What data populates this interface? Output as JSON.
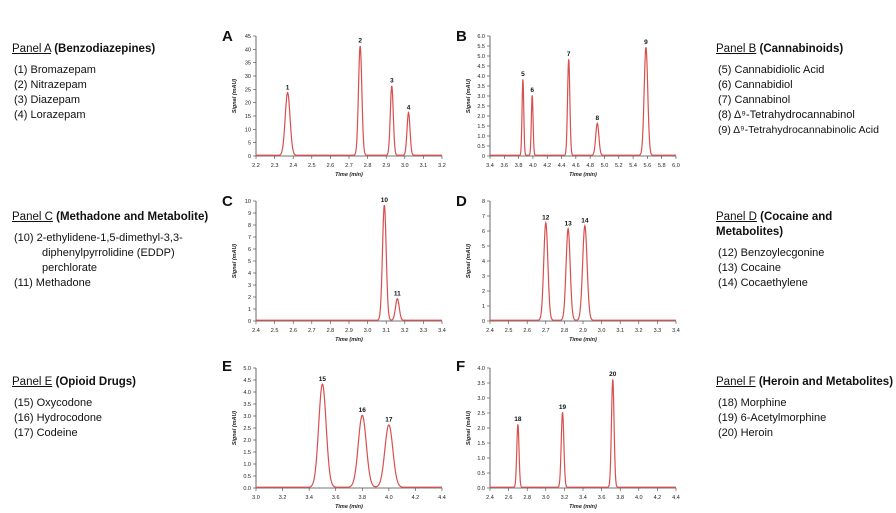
{
  "legends": {
    "A": {
      "name": "Panel A",
      "desc": "(Benzodiazepines)",
      "items": [
        "(1) Bromazepam",
        "(2) Nitrazepam",
        "(3) Diazepam",
        "(4) Lorazepam"
      ]
    },
    "B": {
      "name": "Panel B",
      "desc": "(Cannabinoids)",
      "items": [
        "(5) Cannabidiolic Acid",
        "(6) Cannabidiol",
        "(7) Cannabinol",
        "(8) Δ⁹-Tetrahydrocannabinol",
        "(9) Δ⁹-Tetrahydrocannabinolic  Acid"
      ]
    },
    "C": {
      "name": "Panel C",
      "desc": "(Methadone and Metabolite)",
      "items": [
        "(10) 2-ethylidene-1,5-dimethyl-3,3-diphenylpyrrolidine  (EDDP) perchlorate",
        "(11) Methadone"
      ]
    },
    "D": {
      "name": "Panel D",
      "desc": "(Cocaine and Metabolites)",
      "items": [
        "(12) Benzoylecgonine",
        "(13) Cocaine",
        "(14) Cocaethylene"
      ]
    },
    "E": {
      "name": "Panel E",
      "desc": "(Opioid Drugs)",
      "items": [
        "(15) Oxycodone",
        "(16) Hydrocodone",
        "(17) Codeine"
      ]
    },
    "F": {
      "name": "Panel F",
      "desc": "(Heroin and Metabolites)",
      "items": [
        "(18) Morphine",
        "(19) 6-Acetylmorphine",
        "(20) Heroin"
      ]
    }
  },
  "line_color": "#d94f4f",
  "chart_data": [
    {
      "id": "A",
      "type": "line",
      "xlabel": "Time (min)",
      "ylabel": "Signal (mAU)",
      "xlim": [
        2.2,
        3.2
      ],
      "ylim": [
        0,
        45
      ],
      "xticks": [
        "2.2",
        "2.3",
        "2.4",
        "2.5",
        "2.6",
        "2.7",
        "2.8",
        "2.9",
        "3.0",
        "3.1",
        "3.2"
      ],
      "yticks": [
        "0",
        "5",
        "10",
        "15",
        "20",
        "25",
        "30",
        "35",
        "40",
        "45"
      ],
      "peaks": [
        {
          "label": "1",
          "x": 2.37,
          "height": 23.5,
          "width": 0.013
        },
        {
          "label": "2",
          "x": 2.76,
          "height": 41,
          "width": 0.009
        },
        {
          "label": "3",
          "x": 2.93,
          "height": 26,
          "width": 0.008
        },
        {
          "label": "4",
          "x": 3.02,
          "height": 16,
          "width": 0.008
        }
      ]
    },
    {
      "id": "B",
      "type": "line",
      "xlabel": "Time (min)",
      "ylabel": "Signal (mAU)",
      "xlim": [
        3.4,
        6.0
      ],
      "ylim": [
        0,
        6.0
      ],
      "xticks": [
        "3.4",
        "3.6",
        "3.8",
        "4.0",
        "4.2",
        "4.4",
        "4.6",
        "4.8",
        "5.0",
        "5.2",
        "5.4",
        "5.6",
        "5.8",
        "6.0"
      ],
      "yticks": [
        "0",
        "0.5",
        "1.0",
        "1.5",
        "2.0",
        "2.5",
        "3.0",
        "3.5",
        "4.0",
        "4.5",
        "5.0",
        "5.5",
        "6.0"
      ],
      "peaks": [
        {
          "label": "5",
          "x": 3.86,
          "height": 3.8,
          "width": 0.012
        },
        {
          "label": "6",
          "x": 3.99,
          "height": 3.0,
          "width": 0.012
        },
        {
          "label": "7",
          "x": 4.5,
          "height": 4.8,
          "width": 0.016
        },
        {
          "label": "8",
          "x": 4.9,
          "height": 1.6,
          "width": 0.022
        },
        {
          "label": "9",
          "x": 5.58,
          "height": 5.4,
          "width": 0.025
        }
      ]
    },
    {
      "id": "C",
      "type": "line",
      "xlabel": "Time (min)",
      "ylabel": "Signal (mAU)",
      "xlim": [
        2.4,
        3.4
      ],
      "ylim": [
        0,
        10
      ],
      "xticks": [
        "2.4",
        "2.5",
        "2.6",
        "2.7",
        "2.8",
        "2.9",
        "3.0",
        "3.1",
        "3.2",
        "3.3",
        "3.4"
      ],
      "yticks": [
        "0",
        "1",
        "2",
        "3",
        "4",
        "5",
        "6",
        "7",
        "8",
        "9",
        "10"
      ],
      "peaks": [
        {
          "label": "10",
          "x": 3.09,
          "height": 9.6,
          "width": 0.01
        },
        {
          "label": "11",
          "x": 3.16,
          "height": 1.8,
          "width": 0.01
        }
      ]
    },
    {
      "id": "D",
      "type": "line",
      "xlabel": "Time (min)",
      "ylabel": "Signal (mAU)",
      "xlim": [
        2.4,
        3.4
      ],
      "ylim": [
        0,
        8
      ],
      "xticks": [
        "2.4",
        "2.5",
        "2.6",
        "2.7",
        "2.8",
        "2.9",
        "3.0",
        "3.1",
        "3.2",
        "3.3",
        "3.4"
      ],
      "yticks": [
        "0",
        "1",
        "2",
        "3",
        "4",
        "5",
        "6",
        "7",
        "8"
      ],
      "peaks": [
        {
          "label": "12",
          "x": 2.7,
          "height": 6.5,
          "width": 0.011
        },
        {
          "label": "13",
          "x": 2.82,
          "height": 6.1,
          "width": 0.011
        },
        {
          "label": "14",
          "x": 2.91,
          "height": 6.3,
          "width": 0.012
        }
      ]
    },
    {
      "id": "E",
      "type": "line",
      "xlabel": "Time (min)",
      "ylabel": "Signal (mAU)",
      "xlim": [
        3.0,
        4.4
      ],
      "ylim": [
        0,
        5.0
      ],
      "xticks": [
        "3.0",
        "3.2",
        "3.4",
        "3.6",
        "3.8",
        "4.0",
        "4.2",
        "4.4"
      ],
      "yticks": [
        "0.0",
        "0.5",
        "1.0",
        "1.5",
        "2.0",
        "2.5",
        "3.0",
        "3.5",
        "4.0",
        "4.5",
        "5.0"
      ],
      "peaks": [
        {
          "label": "15",
          "x": 3.5,
          "height": 4.3,
          "width": 0.028
        },
        {
          "label": "16",
          "x": 3.8,
          "height": 3.0,
          "width": 0.03
        },
        {
          "label": "17",
          "x": 4.0,
          "height": 2.6,
          "width": 0.03
        }
      ]
    },
    {
      "id": "F",
      "type": "line",
      "xlabel": "Time (min)",
      "ylabel": "Signal (mAU)",
      "xlim": [
        2.4,
        4.4
      ],
      "ylim": [
        0,
        4.0
      ],
      "xticks": [
        "2.4",
        "2.6",
        "2.8",
        "3.0",
        "3.2",
        "3.4",
        "3.6",
        "3.8",
        "4.0",
        "4.2",
        "4.4"
      ],
      "yticks": [
        "0.0",
        "0.5",
        "1.0",
        "1.5",
        "2.0",
        "2.5",
        "3.0",
        "3.5",
        "4.0"
      ],
      "peaks": [
        {
          "label": "18",
          "x": 2.7,
          "height": 2.1,
          "width": 0.012
        },
        {
          "label": "19",
          "x": 3.18,
          "height": 2.5,
          "width": 0.014
        },
        {
          "label": "20",
          "x": 3.72,
          "height": 3.6,
          "width": 0.014
        }
      ]
    }
  ]
}
